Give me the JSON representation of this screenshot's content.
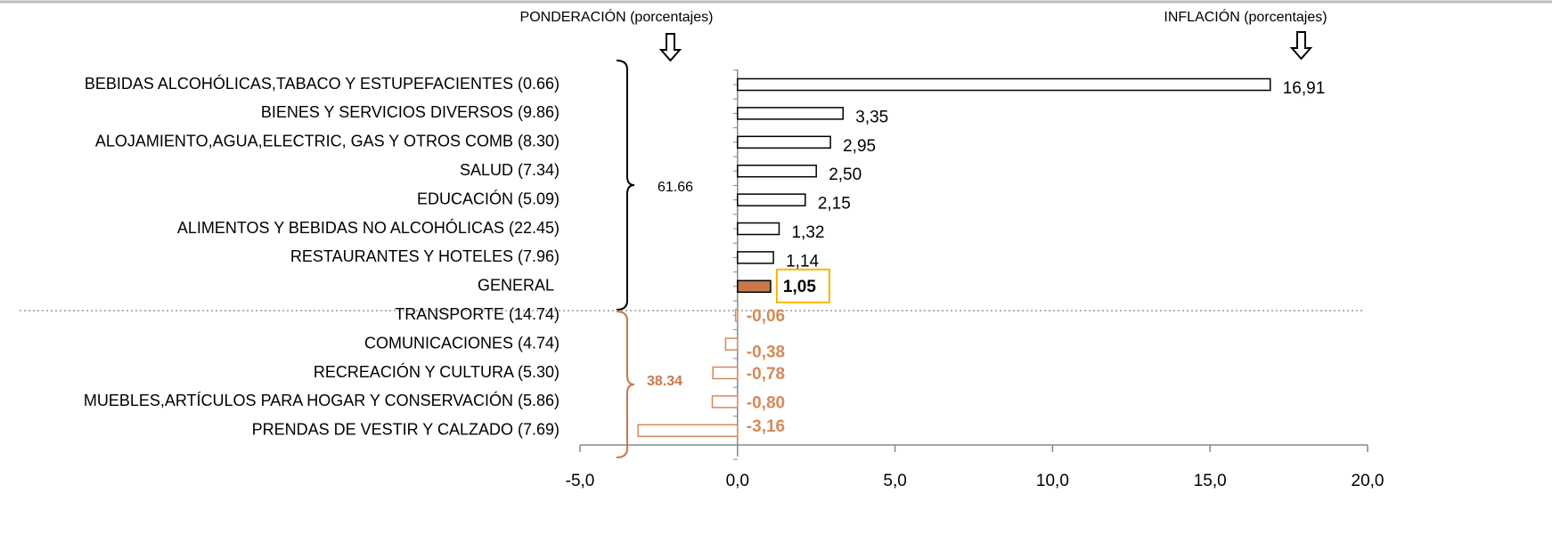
{
  "chart_data": {
    "type": "bar",
    "orientation": "horizontal",
    "annotations": {
      "weight_header": "PONDERACIÓN (porcentajes)",
      "inflation_header": "INFLACIÓN (porcentajes)",
      "upper_group_total": "61.66",
      "lower_group_total": "38.34"
    },
    "categories": [
      "BEBIDAS ALCOHÓLICAS,TABACO Y ESTUPEFACIENTES (0.66)",
      "BIENES Y SERVICIOS DIVERSOS (9.86)",
      "ALOJAMIENTO,AGUA,ELECTRIC, GAS Y OTROS COMB (8.30)",
      "SALUD (7.34)",
      "EDUCACIÓN (5.09)",
      "ALIMENTOS Y BEBIDAS NO ALCOHÓLICAS (22.45)",
      "RESTAURANTES Y HOTELES (7.96)",
      "GENERAL",
      "TRANSPORTE (14.74)",
      "COMUNICACIONES (4.74)",
      "RECREACIÓN Y CULTURA (5.30)",
      "MUEBLES,ARTÍCULOS PARA HOGAR Y CONSERVACIÓN (5.86)",
      "PRENDAS DE VESTIR Y CALZADO (7.69)"
    ],
    "values": [
      16.91,
      3.35,
      2.95,
      2.5,
      2.15,
      1.32,
      1.14,
      1.05,
      -0.06,
      -0.38,
      -0.78,
      -0.8,
      -3.16
    ],
    "value_labels": [
      "16,91",
      "3,35",
      "2,95",
      "2,50",
      "2,15",
      "1,32",
      "1,14",
      "1,05",
      "-0,06",
      "-0,38",
      "-0,78",
      "-0,80",
      "-3,16"
    ],
    "fill_colors": [
      "#ffffff",
      "#ffffff",
      "#ffffff",
      "#ffffff",
      "#ffffff",
      "#ffffff",
      "#ffffff",
      "#c8784a",
      "#ffffff",
      "#ffffff",
      "#ffffff",
      "#ffffff",
      "#ffffff"
    ],
    "stroke_colors": [
      "#000000",
      "#000000",
      "#000000",
      "#000000",
      "#000000",
      "#000000",
      "#000000",
      "#000000",
      "#d4895a",
      "#d4895a",
      "#d4895a",
      "#d4895a",
      "#d4895a"
    ],
    "highlight": 7,
    "highlight_color": "#f5b800",
    "xlim": [
      -5,
      20
    ],
    "xticks": [
      {
        "value": -5,
        "label": "-5,0"
      },
      {
        "value": 0,
        "label": "0,0"
      },
      {
        "value": 5,
        "label": "5,0"
      },
      {
        "value": 10,
        "label": "10,0"
      },
      {
        "value": 15,
        "label": "15,0"
      },
      {
        "value": 20,
        "label": "20,0"
      }
    ]
  }
}
